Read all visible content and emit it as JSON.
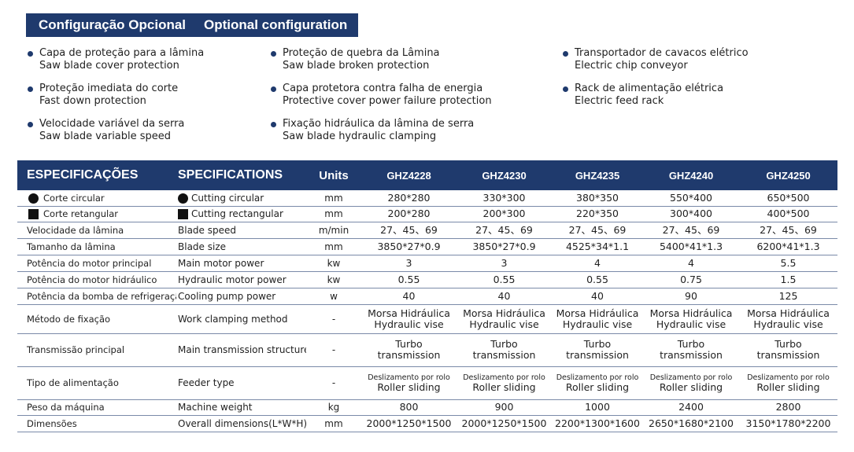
{
  "header": {
    "title_pt": "Configuração Opcional",
    "title_en": "Optional configuration"
  },
  "options": [
    {
      "pt": "Capa de proteção para a lâmina",
      "en": "Saw blade cover protection"
    },
    {
      "pt": "Proteção imediata do corte",
      "en": "Fast down protection"
    },
    {
      "pt": "Velocidade variável da serra",
      "en": "Saw blade variable speed"
    },
    {
      "pt": "Proteção de quebra da Lâmina",
      "en": "Saw blade broken protection"
    },
    {
      "pt": "Capa protetora contra falha de energia",
      "en": "Protective cover power failure protection"
    },
    {
      "pt": " Fixação hidráulica da lâmina de serra",
      "en": "Saw blade hydraulic clamping"
    },
    {
      "pt": "Transportador de cavacos elétrico",
      "en": "Electric chip conveyor"
    },
    {
      "pt": "Rack de alimentação elétrica",
      "en": "Electric feed rack"
    }
  ],
  "table": {
    "headers": {
      "pt": "ESPECIFICAÇÕES",
      "en": "SPECIFICATIONS",
      "units": "Units",
      "models": [
        "GHZ4228",
        "GHZ4230",
        "GHZ4235",
        "GHZ4240",
        "GHZ4250"
      ]
    },
    "rows": [
      {
        "pt": "Corte circular",
        "en": "Cutting circular",
        "unit": "mm",
        "values": [
          "280*280",
          "330*300",
          "380*350",
          "550*400",
          "650*500"
        ]
      },
      {
        "pt": "Corte retangular",
        "en": "Cutting rectangular",
        "unit": "mm",
        "values": [
          "200*280",
          "200*300",
          "220*350",
          "300*400",
          "400*500"
        ]
      },
      {
        "pt": "Velocidade da lâmina",
        "en": "Blade speed",
        "unit": "m/min",
        "values": [
          "27、45、69",
          "27、45、69",
          "27、45、69",
          "27、45、69",
          "27、45、69"
        ]
      },
      {
        "pt": "Tamanho da lâmina",
        "en": "Blade size",
        "unit": "mm",
        "values": [
          "3850*27*0.9",
          "3850*27*0.9",
          "4525*34*1.1",
          "5400*41*1.3",
          "6200*41*1.3"
        ]
      },
      {
        "pt": "Potência do motor principal",
        "en": "Main motor power",
        "unit": "kw",
        "values": [
          "3",
          "3",
          "4",
          "4",
          "5.5"
        ]
      },
      {
        "pt": "Potência do motor hidráulico",
        "en": "Hydraulic motor power",
        "unit": "kw",
        "values": [
          "0.55",
          "0.55",
          "0.55",
          "0.75",
          "1.5"
        ]
      },
      {
        "pt": "Potência da bomba de refrigeração",
        "en": "Cooling pump power",
        "unit": "w",
        "values": [
          "40",
          "40",
          "40",
          "90",
          "125"
        ]
      },
      {
        "pt": "Método de fixação",
        "en": "Work clamping method",
        "unit": "-",
        "values_top": [
          "Morsa Hidráulica",
          "Morsa Hidráulica",
          "Morsa Hidráulica",
          "Morsa Hidráulica",
          "Morsa Hidráulica"
        ],
        "values_bottom": [
          "Hydraulic vise",
          "Hydraulic vise",
          "Hydraulic vise",
          "Hydraulic vise",
          "Hydraulic vise"
        ]
      },
      {
        "pt": "Transmissão principal",
        "en": "Main transmission structure",
        "unit": "-",
        "values_top": [
          "Turbo",
          "Turbo",
          "Turbo",
          "Turbo",
          "Turbo"
        ],
        "values_bottom": [
          "transmission",
          "transmission",
          "transmission",
          "transmission",
          "transmission"
        ]
      },
      {
        "pt": "Tipo de alimentação",
        "en": "Feeder type",
        "unit": "-",
        "values_top": [
          "Deslizamento por rolo",
          "Deslizamento por rolo",
          "Deslizamento por rolo",
          "Deslizamento por rolo",
          "Deslizamento por rolo"
        ],
        "values_bottom": [
          "Roller sliding",
          "Roller sliding",
          "Roller sliding",
          "Roller sliding",
          "Roller sliding"
        ]
      },
      {
        "pt": "Peso da máquina",
        "en": "Machine weight",
        "unit": "kg",
        "values": [
          "800",
          "900",
          "1000",
          "2400",
          "2800"
        ]
      },
      {
        "pt": "Dimensões",
        "en": "Overall dimensions(L*W*H)",
        "unit": "mm",
        "values": [
          "2000*1250*1500",
          "2000*1250*1500",
          "2200*1300*1600",
          "2650*1680*2100",
          "3150*1780*2200"
        ]
      }
    ]
  },
  "colors": {
    "navy": "#1f3a6d",
    "text": "#222222"
  },
  "icons": {
    "row1": "filled-circle-icon",
    "row2": "filled-square-icon",
    "bullet": "bullet-dot-icon"
  }
}
